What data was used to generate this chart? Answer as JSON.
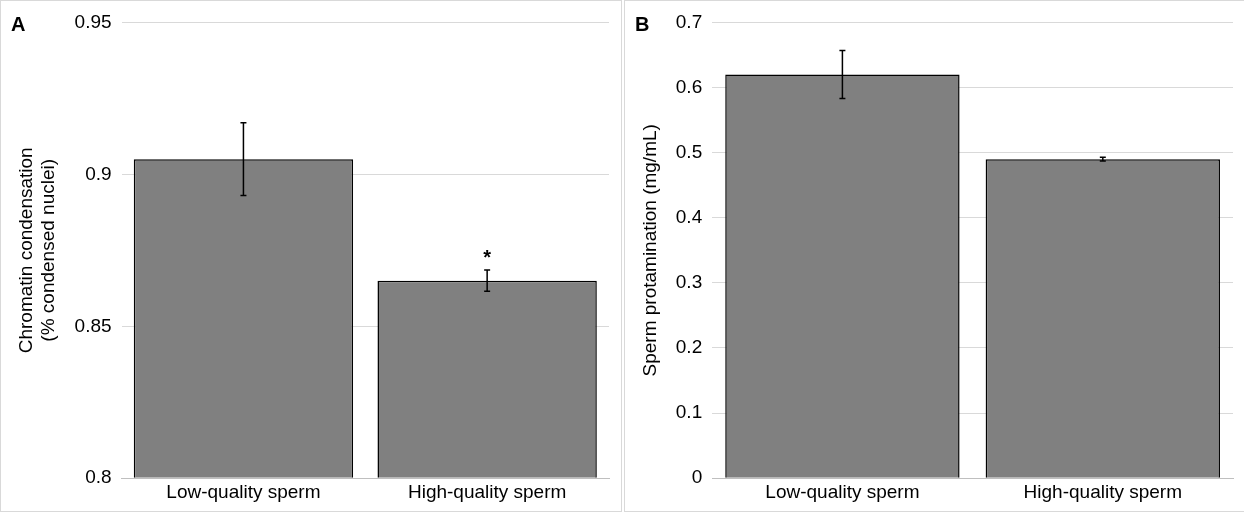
{
  "chart_data": [
    {
      "type": "bar",
      "ylabel": "Chromatin condensation (% condensed nuclei)",
      "categories": [
        "Low-quality sperm",
        "High-quality sperm"
      ],
      "values": [
        0.905,
        0.865
      ],
      "errors": [
        0.012,
        0.0035
      ],
      "color": "#808080",
      "ylim": [
        0.8,
        0.95
      ],
      "yticks": [
        0.8,
        0.85,
        0.9,
        0.95
      ],
      "grid": "y",
      "legend": false,
      "annotations": [
        "A",
        {
          "text": "*",
          "x": "High-quality sperm",
          "y": 0.8685
        }
      ]
    },
    {
      "type": "bar",
      "ylabel": "Sperm protamination (mg/mL)",
      "categories": [
        "Low-quality sperm",
        "High-quality sperm"
      ],
      "values": [
        0.62,
        0.49
      ],
      "errors": [
        0.037,
        0.003
      ],
      "color": "#808080",
      "ylim": [
        0,
        0.7
      ],
      "yticks": [
        0,
        0.1,
        0.2,
        0.3,
        0.4,
        0.5,
        0.6,
        0.7
      ],
      "grid": "y",
      "legend": false,
      "annotations": [
        "B"
      ]
    }
  ]
}
